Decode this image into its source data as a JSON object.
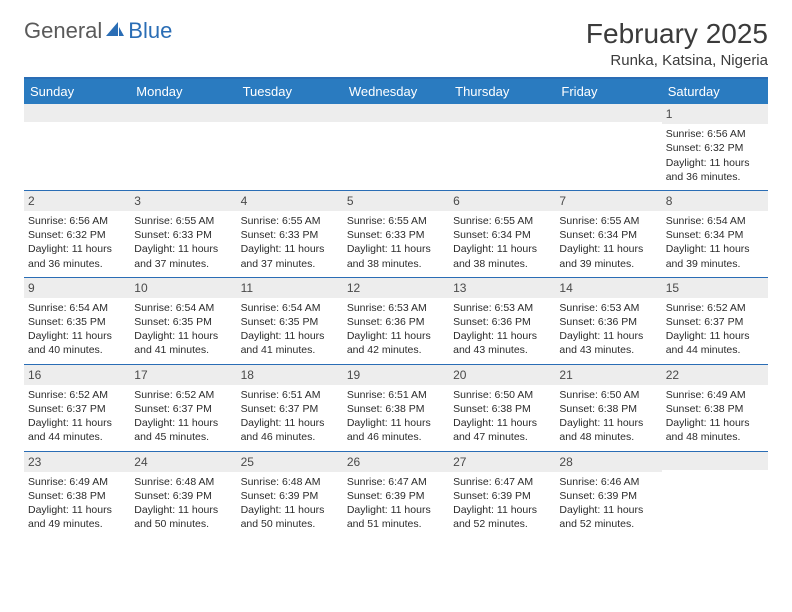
{
  "logo": {
    "word1": "General",
    "word2": "Blue"
  },
  "title": "February 2025",
  "location": "Runka, Katsina, Nigeria",
  "colors": {
    "header_bar": "#2a7bc0",
    "rule": "#2a6db5",
    "daynum_bg": "#ededed",
    "text": "#2b2b2b",
    "weekday_text": "#ffffff"
  },
  "weekdays": [
    "Sunday",
    "Monday",
    "Tuesday",
    "Wednesday",
    "Thursday",
    "Friday",
    "Saturday"
  ],
  "weeks": [
    [
      null,
      null,
      null,
      null,
      null,
      null,
      {
        "n": "1",
        "sunrise": "Sunrise: 6:56 AM",
        "sunset": "Sunset: 6:32 PM",
        "daylight": "Daylight: 11 hours and 36 minutes."
      }
    ],
    [
      {
        "n": "2",
        "sunrise": "Sunrise: 6:56 AM",
        "sunset": "Sunset: 6:32 PM",
        "daylight": "Daylight: 11 hours and 36 minutes."
      },
      {
        "n": "3",
        "sunrise": "Sunrise: 6:55 AM",
        "sunset": "Sunset: 6:33 PM",
        "daylight": "Daylight: 11 hours and 37 minutes."
      },
      {
        "n": "4",
        "sunrise": "Sunrise: 6:55 AM",
        "sunset": "Sunset: 6:33 PM",
        "daylight": "Daylight: 11 hours and 37 minutes."
      },
      {
        "n": "5",
        "sunrise": "Sunrise: 6:55 AM",
        "sunset": "Sunset: 6:33 PM",
        "daylight": "Daylight: 11 hours and 38 minutes."
      },
      {
        "n": "6",
        "sunrise": "Sunrise: 6:55 AM",
        "sunset": "Sunset: 6:34 PM",
        "daylight": "Daylight: 11 hours and 38 minutes."
      },
      {
        "n": "7",
        "sunrise": "Sunrise: 6:55 AM",
        "sunset": "Sunset: 6:34 PM",
        "daylight": "Daylight: 11 hours and 39 minutes."
      },
      {
        "n": "8",
        "sunrise": "Sunrise: 6:54 AM",
        "sunset": "Sunset: 6:34 PM",
        "daylight": "Daylight: 11 hours and 39 minutes."
      }
    ],
    [
      {
        "n": "9",
        "sunrise": "Sunrise: 6:54 AM",
        "sunset": "Sunset: 6:35 PM",
        "daylight": "Daylight: 11 hours and 40 minutes."
      },
      {
        "n": "10",
        "sunrise": "Sunrise: 6:54 AM",
        "sunset": "Sunset: 6:35 PM",
        "daylight": "Daylight: 11 hours and 41 minutes."
      },
      {
        "n": "11",
        "sunrise": "Sunrise: 6:54 AM",
        "sunset": "Sunset: 6:35 PM",
        "daylight": "Daylight: 11 hours and 41 minutes."
      },
      {
        "n": "12",
        "sunrise": "Sunrise: 6:53 AM",
        "sunset": "Sunset: 6:36 PM",
        "daylight": "Daylight: 11 hours and 42 minutes."
      },
      {
        "n": "13",
        "sunrise": "Sunrise: 6:53 AM",
        "sunset": "Sunset: 6:36 PM",
        "daylight": "Daylight: 11 hours and 43 minutes."
      },
      {
        "n": "14",
        "sunrise": "Sunrise: 6:53 AM",
        "sunset": "Sunset: 6:36 PM",
        "daylight": "Daylight: 11 hours and 43 minutes."
      },
      {
        "n": "15",
        "sunrise": "Sunrise: 6:52 AM",
        "sunset": "Sunset: 6:37 PM",
        "daylight": "Daylight: 11 hours and 44 minutes."
      }
    ],
    [
      {
        "n": "16",
        "sunrise": "Sunrise: 6:52 AM",
        "sunset": "Sunset: 6:37 PM",
        "daylight": "Daylight: 11 hours and 44 minutes."
      },
      {
        "n": "17",
        "sunrise": "Sunrise: 6:52 AM",
        "sunset": "Sunset: 6:37 PM",
        "daylight": "Daylight: 11 hours and 45 minutes."
      },
      {
        "n": "18",
        "sunrise": "Sunrise: 6:51 AM",
        "sunset": "Sunset: 6:37 PM",
        "daylight": "Daylight: 11 hours and 46 minutes."
      },
      {
        "n": "19",
        "sunrise": "Sunrise: 6:51 AM",
        "sunset": "Sunset: 6:38 PM",
        "daylight": "Daylight: 11 hours and 46 minutes."
      },
      {
        "n": "20",
        "sunrise": "Sunrise: 6:50 AM",
        "sunset": "Sunset: 6:38 PM",
        "daylight": "Daylight: 11 hours and 47 minutes."
      },
      {
        "n": "21",
        "sunrise": "Sunrise: 6:50 AM",
        "sunset": "Sunset: 6:38 PM",
        "daylight": "Daylight: 11 hours and 48 minutes."
      },
      {
        "n": "22",
        "sunrise": "Sunrise: 6:49 AM",
        "sunset": "Sunset: 6:38 PM",
        "daylight": "Daylight: 11 hours and 48 minutes."
      }
    ],
    [
      {
        "n": "23",
        "sunrise": "Sunrise: 6:49 AM",
        "sunset": "Sunset: 6:38 PM",
        "daylight": "Daylight: 11 hours and 49 minutes."
      },
      {
        "n": "24",
        "sunrise": "Sunrise: 6:48 AM",
        "sunset": "Sunset: 6:39 PM",
        "daylight": "Daylight: 11 hours and 50 minutes."
      },
      {
        "n": "25",
        "sunrise": "Sunrise: 6:48 AM",
        "sunset": "Sunset: 6:39 PM",
        "daylight": "Daylight: 11 hours and 50 minutes."
      },
      {
        "n": "26",
        "sunrise": "Sunrise: 6:47 AM",
        "sunset": "Sunset: 6:39 PM",
        "daylight": "Daylight: 11 hours and 51 minutes."
      },
      {
        "n": "27",
        "sunrise": "Sunrise: 6:47 AM",
        "sunset": "Sunset: 6:39 PM",
        "daylight": "Daylight: 11 hours and 52 minutes."
      },
      {
        "n": "28",
        "sunrise": "Sunrise: 6:46 AM",
        "sunset": "Sunset: 6:39 PM",
        "daylight": "Daylight: 11 hours and 52 minutes."
      },
      null
    ]
  ]
}
